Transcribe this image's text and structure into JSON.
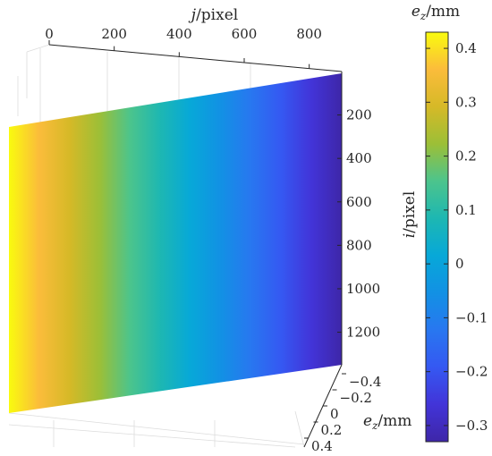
{
  "chart_data": {
    "type": "surface",
    "z_range": [
      -0.33,
      0.43
    ],
    "x": {
      "label": "j/pixel",
      "label_italic": "j",
      "label_rest": "/pixel",
      "ticks": [
        "0",
        "200",
        "400",
        "600",
        "800"
      ],
      "range": [
        0,
        900
      ]
    },
    "y": {
      "label": "i/pixel",
      "label_italic": "i",
      "label_rest": "/pixel",
      "ticks": [
        "200",
        "400",
        "600",
        "800",
        "1000",
        "1200"
      ],
      "range": [
        0,
        1350
      ]
    },
    "z": {
      "label": "ez/mm",
      "label_italic": "e",
      "label_sub": "z",
      "label_rest": "/mm",
      "ticks": [
        "−0.4",
        "−0.2",
        "0",
        "0.2",
        "0.4"
      ]
    },
    "colorbar": {
      "label": "ez/mm",
      "label_italic": "e",
      "label_sub": "z",
      "label_rest": "/mm",
      "ticks": [
        "0.4",
        "0.3",
        "0.2",
        "0.1",
        "0",
        "−0.1",
        "−0.2",
        "−0.3"
      ],
      "tick_values": [
        0.4,
        0.3,
        0.2,
        0.1,
        0,
        -0.1,
        -0.2,
        -0.3
      ],
      "colormap": "parula",
      "colors": [
        "#f9fb0e",
        "#fbbc3b",
        "#d6b927",
        "#9cbf37",
        "#4cc48c",
        "#1db7b2",
        "#07a8d8",
        "#1291e4",
        "#2877f0",
        "#3558f2",
        "#4234d8",
        "#3e26a8"
      ]
    },
    "surface": {
      "description_values": "ez varies linearly along j from about 0.42 mm at j=0 to about -0.33 mm at j=900; constant along i",
      "z_at_j_start": 0.42,
      "z_at_j_end": -0.33
    },
    "grid": true
  }
}
